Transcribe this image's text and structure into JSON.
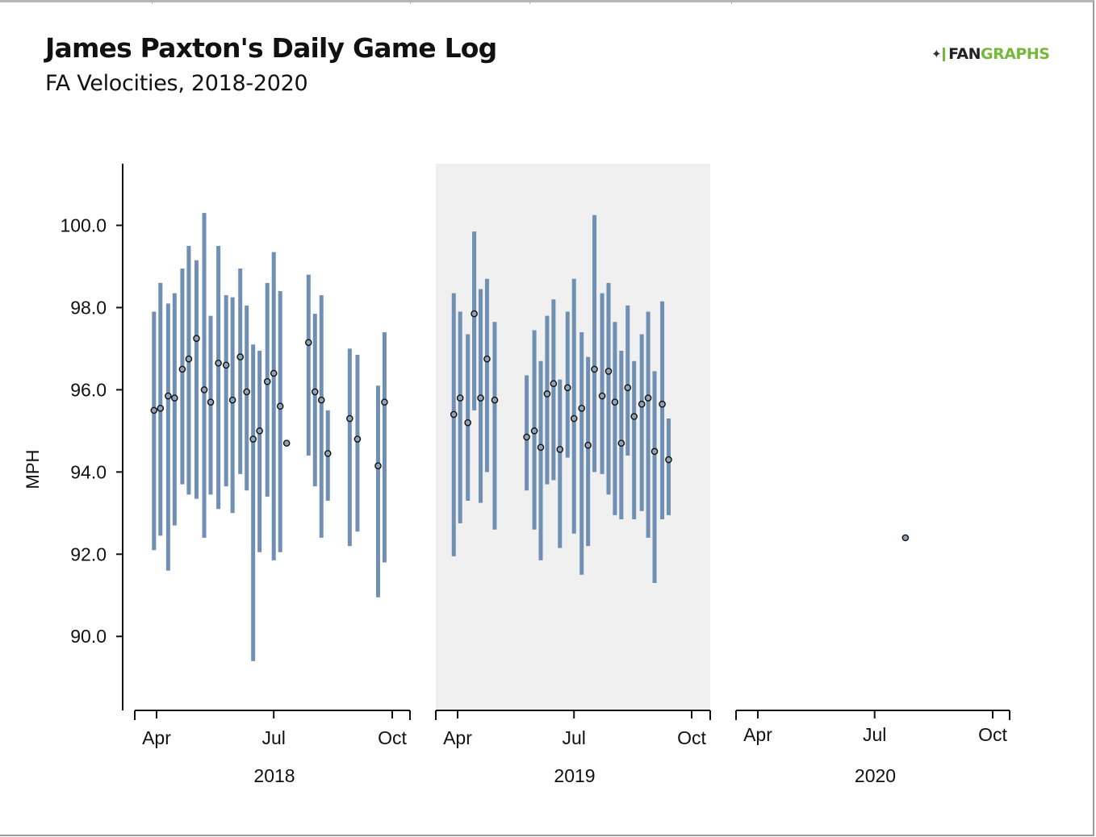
{
  "title": "James Paxton's Daily Game Log",
  "subtitle": "FA Velocities, 2018-2020",
  "logo": {
    "mark": "✦",
    "part1": "FAN",
    "part2": "GRAPHS",
    "color_green": "#76b83c"
  },
  "colors": {
    "bar": "#6f8fb3",
    "point_fill": "#8fa2b6",
    "point_stroke": "#111111",
    "panel_shade": "#f0f0f0"
  },
  "chart_data": {
    "type": "scatter",
    "ylabel": "MPH",
    "ylim": [
      88.2,
      101.5
    ],
    "yticks": [
      100.0,
      98.0,
      96.0,
      94.0,
      92.0,
      90.0
    ],
    "ytick_labels": [
      "100.0",
      "98.0",
      "96.0",
      "94.0",
      "92.0",
      "90.0"
    ],
    "xtick_labels": [
      "Apr",
      "Jul",
      "Oct"
    ],
    "panels": [
      {
        "label": "2018",
        "shaded": false,
        "games": [
          {
            "date": "2018-03-30",
            "avg": 95.5,
            "min": 92.1,
            "max": 97.9
          },
          {
            "date": "2018-04-04",
            "avg": 95.55,
            "min": 92.45,
            "max": 98.6
          },
          {
            "date": "2018-04-10",
            "avg": 95.85,
            "min": 91.6,
            "max": 98.1
          },
          {
            "date": "2018-04-15",
            "avg": 95.8,
            "min": 92.7,
            "max": 98.35
          },
          {
            "date": "2018-04-21",
            "avg": 96.5,
            "min": 93.7,
            "max": 98.95
          },
          {
            "date": "2018-04-26",
            "avg": 96.75,
            "min": 93.45,
            "max": 99.5
          },
          {
            "date": "2018-05-02",
            "avg": 97.25,
            "min": 93.35,
            "max": 99.15
          },
          {
            "date": "2018-05-08",
            "avg": 96.0,
            "min": 92.4,
            "max": 100.3
          },
          {
            "date": "2018-05-13",
            "avg": 95.7,
            "min": 93.45,
            "max": 97.8
          },
          {
            "date": "2018-05-19",
            "avg": 96.65,
            "min": 93.1,
            "max": 99.5
          },
          {
            "date": "2018-05-25",
            "avg": 96.6,
            "min": 93.65,
            "max": 98.3
          },
          {
            "date": "2018-05-30",
            "avg": 95.75,
            "min": 93.0,
            "max": 98.25
          },
          {
            "date": "2018-06-05",
            "avg": 96.8,
            "min": 93.95,
            "max": 98.95
          },
          {
            "date": "2018-06-10",
            "avg": 95.95,
            "min": 93.55,
            "max": 98.05
          },
          {
            "date": "2018-06-15",
            "avg": 94.8,
            "min": 89.4,
            "max": 97.1
          },
          {
            "date": "2018-06-20",
            "avg": 95.0,
            "min": 92.05,
            "max": 96.95
          },
          {
            "date": "2018-06-26",
            "avg": 96.2,
            "min": 93.4,
            "max": 98.6
          },
          {
            "date": "2018-07-01",
            "avg": 96.4,
            "min": 91.85,
            "max": 99.35
          },
          {
            "date": "2018-07-06",
            "avg": 95.6,
            "min": 92.05,
            "max": 98.4
          },
          {
            "date": "2018-07-11",
            "avg": 94.7,
            "min": 94.7,
            "max": 94.7
          },
          {
            "date": "2018-07-28",
            "avg": 97.15,
            "min": 94.4,
            "max": 98.8
          },
          {
            "date": "2018-08-02",
            "avg": 95.95,
            "min": 93.65,
            "max": 97.85
          },
          {
            "date": "2018-08-07",
            "avg": 95.75,
            "min": 92.4,
            "max": 98.3
          },
          {
            "date": "2018-08-12",
            "avg": 94.45,
            "min": 93.3,
            "max": 95.5
          },
          {
            "date": "2018-08-29",
            "avg": 95.3,
            "min": 92.2,
            "max": 97.0
          },
          {
            "date": "2018-09-04",
            "avg": 94.8,
            "min": 92.55,
            "max": 96.85
          },
          {
            "date": "2018-09-20",
            "avg": 94.15,
            "min": 90.95,
            "max": 96.1
          },
          {
            "date": "2018-09-25",
            "avg": 95.7,
            "min": 91.8,
            "max": 97.4
          }
        ]
      },
      {
        "label": "2019",
        "shaded": true,
        "games": [
          {
            "date": "2019-03-29",
            "avg": 95.4,
            "min": 91.95,
            "max": 98.35
          },
          {
            "date": "2019-04-03",
            "avg": 95.8,
            "min": 92.75,
            "max": 97.9
          },
          {
            "date": "2019-04-09",
            "avg": 95.2,
            "min": 93.3,
            "max": 97.35
          },
          {
            "date": "2019-04-14",
            "avg": 97.85,
            "min": 95.5,
            "max": 99.85
          },
          {
            "date": "2019-04-19",
            "avg": 95.8,
            "min": 93.25,
            "max": 98.45
          },
          {
            "date": "2019-04-24",
            "avg": 96.75,
            "min": 94.0,
            "max": 98.7
          },
          {
            "date": "2019-04-30",
            "avg": 95.75,
            "min": 92.6,
            "max": 97.65
          },
          {
            "date": "2019-05-25",
            "avg": 94.85,
            "min": 93.55,
            "max": 96.35
          },
          {
            "date": "2019-05-31",
            "avg": 95.0,
            "min": 92.6,
            "max": 97.45
          },
          {
            "date": "2019-06-05",
            "avg": 94.6,
            "min": 91.85,
            "max": 96.7
          },
          {
            "date": "2019-06-10",
            "avg": 95.9,
            "min": 93.7,
            "max": 97.8
          },
          {
            "date": "2019-06-15",
            "avg": 96.15,
            "min": 93.8,
            "max": 98.2
          },
          {
            "date": "2019-06-20",
            "avg": 94.55,
            "min": 92.15,
            "max": 96.25
          },
          {
            "date": "2019-06-26",
            "avg": 96.05,
            "min": 94.35,
            "max": 97.9
          },
          {
            "date": "2019-07-01",
            "avg": 95.3,
            "min": 92.5,
            "max": 98.7
          },
          {
            "date": "2019-07-07",
            "avg": 95.55,
            "min": 91.5,
            "max": 97.4
          },
          {
            "date": "2019-07-12",
            "avg": 94.65,
            "min": 92.2,
            "max": 96.8
          },
          {
            "date": "2019-07-17",
            "avg": 96.5,
            "min": 94.0,
            "max": 100.25
          },
          {
            "date": "2019-07-23",
            "avg": 95.85,
            "min": 93.95,
            "max": 98.35
          },
          {
            "date": "2019-07-28",
            "avg": 96.45,
            "min": 93.45,
            "max": 98.6
          },
          {
            "date": "2019-08-02",
            "avg": 95.7,
            "min": 92.95,
            "max": 97.65
          },
          {
            "date": "2019-08-07",
            "avg": 94.7,
            "min": 92.85,
            "max": 96.95
          },
          {
            "date": "2019-08-12",
            "avg": 96.05,
            "min": 94.4,
            "max": 98.05
          },
          {
            "date": "2019-08-17",
            "avg": 95.35,
            "min": 92.85,
            "max": 96.7
          },
          {
            "date": "2019-08-23",
            "avg": 95.65,
            "min": 93.05,
            "max": 97.35
          },
          {
            "date": "2019-08-28",
            "avg": 95.8,
            "min": 92.4,
            "max": 97.9
          },
          {
            "date": "2019-09-02",
            "avg": 94.5,
            "min": 91.3,
            "max": 96.45
          },
          {
            "date": "2019-09-08",
            "avg": 95.65,
            "min": 92.85,
            "max": 98.15
          },
          {
            "date": "2019-09-13",
            "avg": 94.3,
            "min": 92.95,
            "max": 95.3
          }
        ]
      },
      {
        "label": "2020",
        "shaded": false,
        "games": [
          {
            "date": "2020-07-24",
            "avg": 92.4,
            "min": 92.4,
            "max": 92.4
          }
        ]
      }
    ]
  }
}
